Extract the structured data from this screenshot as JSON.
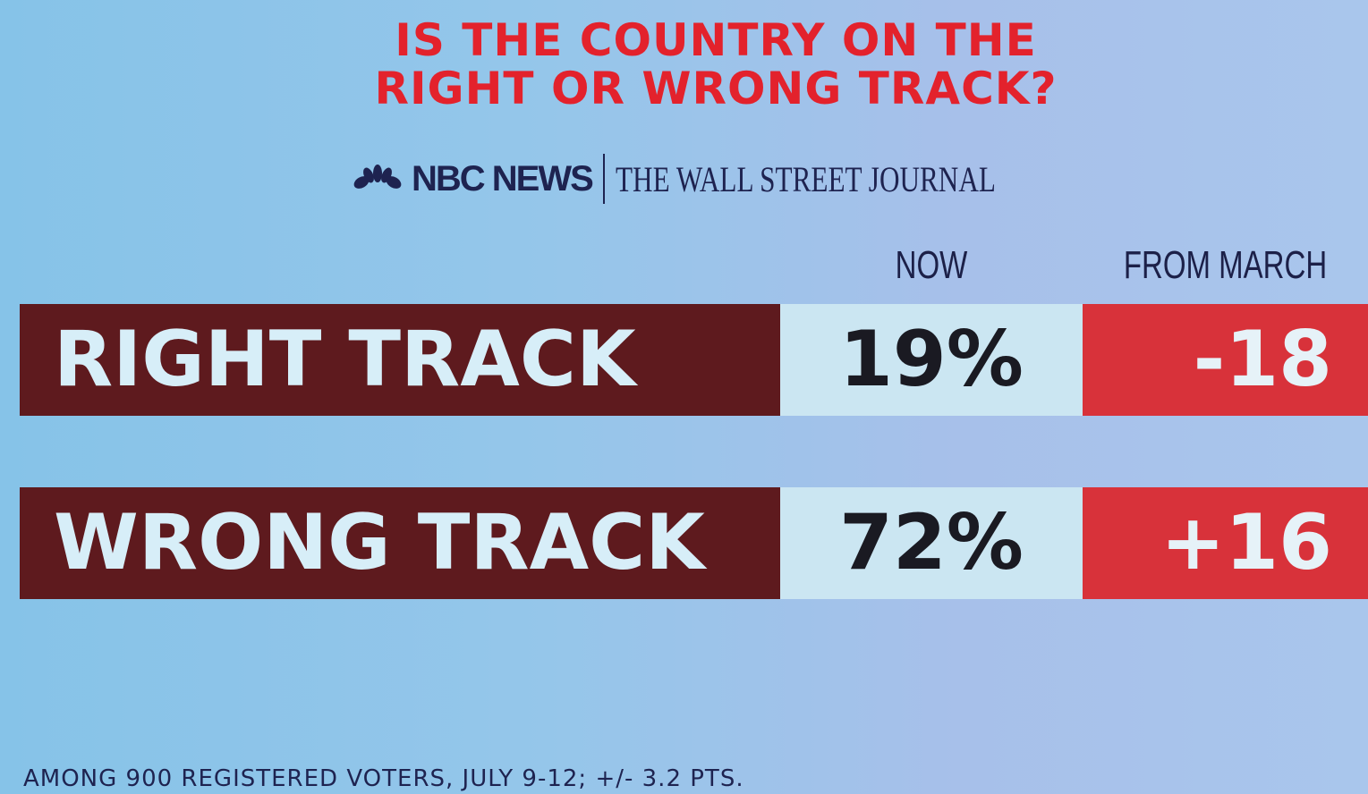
{
  "title_lines": [
    "IS THE COUNTRY ON THE",
    "RIGHT OR WRONG TRACK?"
  ],
  "sources": {
    "nbc": "NBC NEWS",
    "wsj": "THE WALL STREET JOURNAL",
    "nbc_icon": "peacock-icon"
  },
  "colors": {
    "title": "#e3222c",
    "label_bg": "#5e1a1e",
    "now_bg": "#cbe6f2",
    "change_bg": "#d8323a"
  },
  "chart_data": {
    "type": "table",
    "title": "IS THE COUNTRY ON THE RIGHT OR WRONG TRACK?",
    "columns": [
      "NOW",
      "FROM MARCH"
    ],
    "rows": [
      {
        "label": "RIGHT TRACK",
        "now": "19%",
        "change": "-18"
      },
      {
        "label": "WRONG TRACK",
        "now": "72%",
        "change": "+16"
      }
    ]
  },
  "footnote": "AMONG 900 REGISTERED VOTERS, JULY 9-12; +/- 3.2 PTS."
}
